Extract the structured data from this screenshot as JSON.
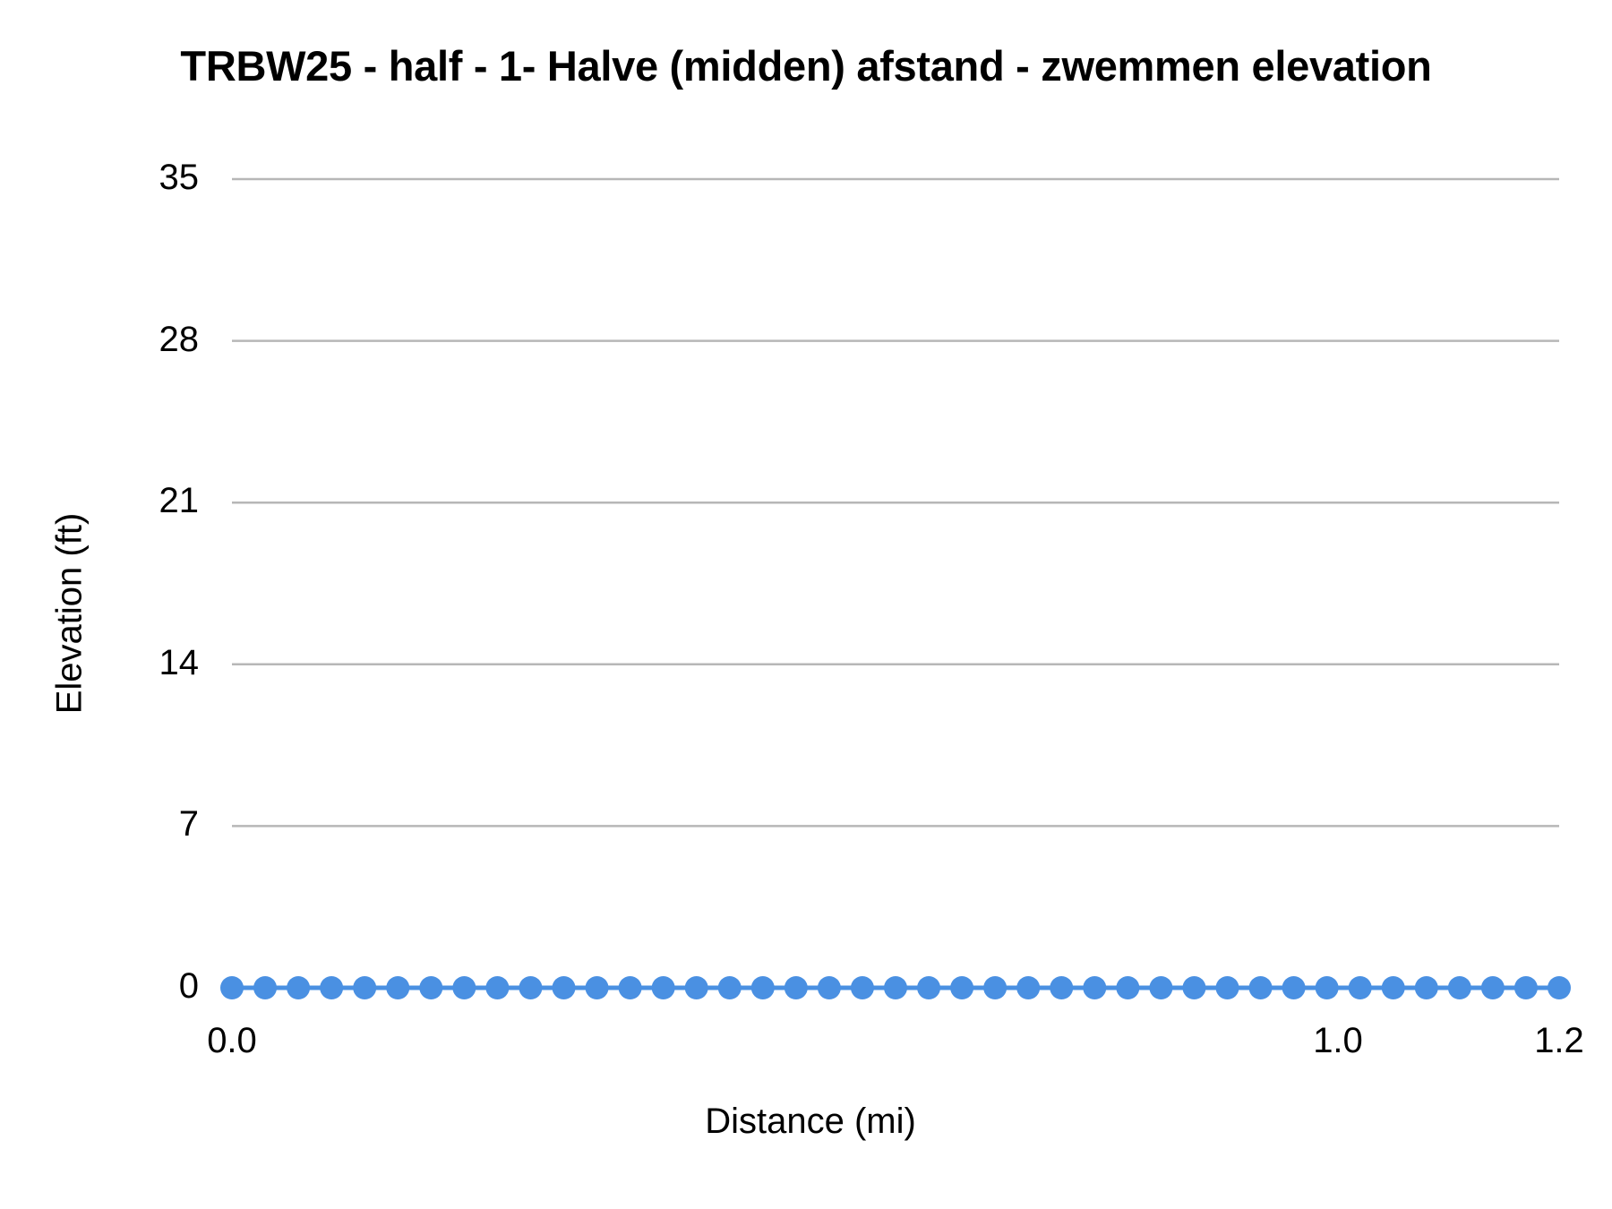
{
  "chart_data": {
    "type": "line",
    "title": "TRBW25 - half - 1- Halve (midden) afstand - zwemmen elevation",
    "xlabel": "Distance (mi)",
    "ylabel": "Elevation (ft)",
    "ylim": [
      0,
      35
    ],
    "xlim": [
      0.0,
      1.2
    ],
    "yticks": [
      "0",
      "7",
      "14",
      "21",
      "28",
      "35"
    ],
    "xticks": [
      {
        "label": "0.0",
        "value": 0.0
      },
      {
        "label": "1.0",
        "value": 1.0
      },
      {
        "label": "1.2",
        "value": 1.2
      }
    ],
    "grid": true,
    "legend": "none",
    "series": [
      {
        "name": "Elevation",
        "color": "#4a90e2",
        "x": [
          0.0,
          0.03,
          0.06,
          0.09,
          0.12,
          0.15,
          0.18,
          0.21,
          0.24,
          0.27,
          0.3,
          0.33,
          0.36,
          0.39,
          0.42,
          0.45,
          0.48,
          0.51,
          0.54,
          0.57,
          0.6,
          0.63,
          0.66,
          0.69,
          0.72,
          0.75,
          0.78,
          0.81,
          0.84,
          0.87,
          0.9,
          0.93,
          0.96,
          0.99,
          1.02,
          1.05,
          1.08,
          1.11,
          1.14,
          1.17,
          1.2
        ],
        "values": [
          0,
          0,
          0,
          0,
          0,
          0,
          0,
          0,
          0,
          0,
          0,
          0,
          0,
          0,
          0,
          0,
          0,
          0,
          0,
          0,
          0,
          0,
          0,
          0,
          0,
          0,
          0,
          0,
          0,
          0,
          0,
          0,
          0,
          0,
          0,
          0,
          0,
          0,
          0,
          0,
          0
        ]
      }
    ]
  }
}
